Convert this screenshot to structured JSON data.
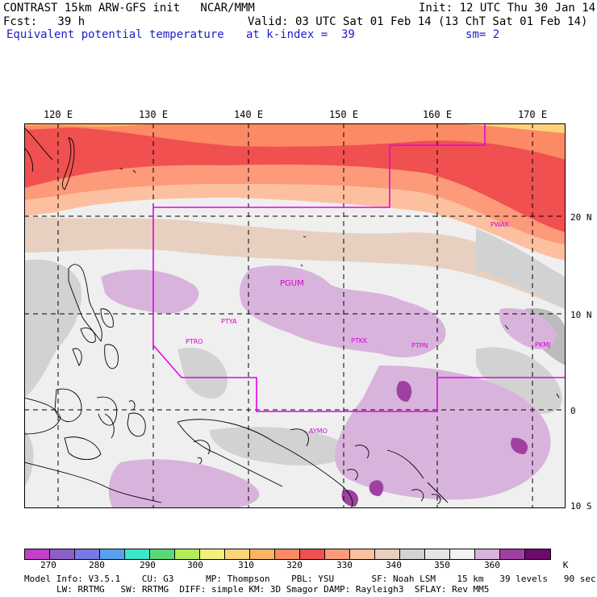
{
  "header": {
    "line1_left": "CONTRAST 15km ARW-GFS init   NCAR/MMM",
    "line1_right": "Init: 12 UTC Thu 30 Jan 14",
    "line2_left": "Fcst:   39 h",
    "line2_right": "Valid: 03 UTC Sat 01 Feb 14 (13 ChT Sat 01 Feb 14)",
    "line3_left": "Equivalent potential temperature",
    "line3_mid": "at k-index =  39",
    "line3_right": "sm= 2"
  },
  "axes": {
    "lon_labels": [
      "120 E",
      "130 E",
      "140 E",
      "150 E",
      "160 E",
      "170 E"
    ],
    "lat_labels": [
      "20 N",
      "10 N",
      "0",
      "10 S"
    ]
  },
  "stations": [
    "PGUM",
    "PTYA",
    "PTRO",
    "PTKK",
    "PTPN",
    "PKMJ",
    "PWAK",
    "AYMO"
  ],
  "colorbar": {
    "labels": [
      "270",
      "280",
      "290",
      "300",
      "310",
      "320",
      "330",
      "340",
      "350",
      "360",
      "K"
    ],
    "colors": [
      "#c040c8",
      "#8c60c8",
      "#7878e6",
      "#5aa0f0",
      "#3ce6c8",
      "#5ad878",
      "#b4ec5a",
      "#f0f07a",
      "#fcd27a",
      "#fcb464",
      "#fc8a64",
      "#f05050",
      "#fc9a7a",
      "#fcc0a0",
      "#e8d0c0",
      "#d2d2d2",
      "#e6e6e6",
      "#f2f2f2",
      "#d8b4dc",
      "#a040a0",
      "#6a0a6a"
    ]
  },
  "model_info": {
    "line1": "Model Info: V3.5.1    CU: G3      MP: Thompson    PBL: YSU       SF: Noah LSM    15 km   39 levels   90 sec",
    "line2": "LW: RRTMG   SW: RRTMG  DIFF: simple KM: 3D Smagor DAMP: Rayleigh3  SFLAY: Rev MM5"
  }
}
